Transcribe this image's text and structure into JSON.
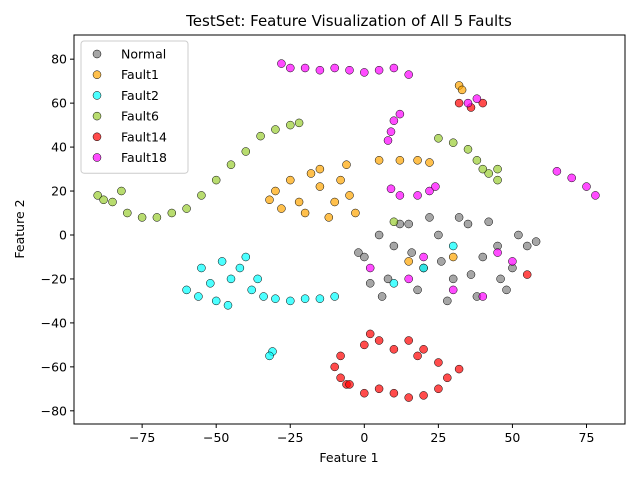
{
  "chart_data": {
    "type": "scatter",
    "title": "TestSet: Feature Visualization of All 5 Faults",
    "xlabel": "Feature 1",
    "ylabel": "Feature 2",
    "xlim": [
      -98,
      88
    ],
    "ylim": [
      -86,
      91
    ],
    "xticks": [
      -75,
      -50,
      -25,
      0,
      25,
      50,
      75
    ],
    "yticks": [
      -80,
      -60,
      -40,
      -20,
      0,
      20,
      40,
      60,
      80
    ],
    "grid": false,
    "legend_position": "top-left",
    "series": [
      {
        "name": "Normal",
        "color": "#808080",
        "points": [
          [
            0,
            -10
          ],
          [
            5,
            0
          ],
          [
            10,
            -5
          ],
          [
            15,
            5
          ],
          [
            20,
            -15
          ],
          [
            25,
            0
          ],
          [
            30,
            -20
          ],
          [
            35,
            5
          ],
          [
            40,
            -10
          ],
          [
            45,
            -5
          ],
          [
            50,
            -15
          ],
          [
            55,
            -5
          ],
          [
            8,
            -20
          ],
          [
            18,
            -25
          ],
          [
            28,
            -30
          ],
          [
            38,
            -28
          ],
          [
            48,
            -25
          ],
          [
            12,
            5
          ],
          [
            22,
            8
          ],
          [
            32,
            8
          ],
          [
            42,
            6
          ],
          [
            2,
            -22
          ],
          [
            52,
            0
          ],
          [
            58,
            -3
          ],
          [
            -2,
            -8
          ],
          [
            26,
            -12
          ],
          [
            36,
            -18
          ],
          [
            16,
            -8
          ],
          [
            46,
            -20
          ],
          [
            6,
            -28
          ]
        ]
      },
      {
        "name": "Fault1",
        "color": "#FFA500",
        "points": [
          [
            -30,
            20
          ],
          [
            -25,
            25
          ],
          [
            -20,
            10
          ],
          [
            -15,
            22
          ],
          [
            -10,
            15
          ],
          [
            -5,
            18
          ],
          [
            -28,
            12
          ],
          [
            -18,
            28
          ],
          [
            -8,
            25
          ],
          [
            -22,
            15
          ],
          [
            -12,
            8
          ],
          [
            -3,
            10
          ],
          [
            -32,
            16
          ],
          [
            -15,
            30
          ],
          [
            -6,
            32
          ],
          [
            5,
            34
          ],
          [
            12,
            34
          ],
          [
            18,
            34
          ],
          [
            22,
            33
          ],
          [
            32,
            68
          ],
          [
            33,
            66
          ],
          [
            30,
            -10
          ],
          [
            15,
            -12
          ]
        ]
      },
      {
        "name": "Fault2",
        "color": "#00FFFF",
        "points": [
          [
            -60,
            -25
          ],
          [
            -55,
            -15
          ],
          [
            -50,
            -30
          ],
          [
            -45,
            -20
          ],
          [
            -40,
            -10
          ],
          [
            -38,
            -25
          ],
          [
            -52,
            -22
          ],
          [
            -46,
            -32
          ],
          [
            -42,
            -15
          ],
          [
            -36,
            -20
          ],
          [
            -48,
            -12
          ],
          [
            -56,
            -28
          ],
          [
            -34,
            -28
          ],
          [
            -30,
            -29
          ],
          [
            -25,
            -30
          ],
          [
            -20,
            -29
          ],
          [
            -15,
            -29
          ],
          [
            -10,
            -28
          ],
          [
            -31,
            -53
          ],
          [
            -32,
            -55
          ],
          [
            20,
            -15
          ],
          [
            30,
            -5
          ],
          [
            10,
            -22
          ]
        ]
      },
      {
        "name": "Fault6",
        "color": "#9ACD32",
        "points": [
          [
            -90,
            18
          ],
          [
            -85,
            15
          ],
          [
            -80,
            10
          ],
          [
            -75,
            8
          ],
          [
            -70,
            8
          ],
          [
            -65,
            10
          ],
          [
            -60,
            12
          ],
          [
            -55,
            18
          ],
          [
            -50,
            25
          ],
          [
            -45,
            32
          ],
          [
            -40,
            38
          ],
          [
            -35,
            45
          ],
          [
            -30,
            48
          ],
          [
            -25,
            50
          ],
          [
            -22,
            51
          ],
          [
            -88,
            16
          ],
          [
            -82,
            20
          ],
          [
            25,
            44
          ],
          [
            30,
            42
          ],
          [
            35,
            39
          ],
          [
            38,
            34
          ],
          [
            40,
            30
          ],
          [
            42,
            28
          ],
          [
            45,
            25
          ],
          [
            45,
            30
          ],
          [
            10,
            6
          ]
        ]
      },
      {
        "name": "Fault14",
        "color": "#FF0000",
        "points": [
          [
            -10,
            -60
          ],
          [
            -8,
            -55
          ],
          [
            -6,
            -68
          ],
          [
            0,
            -50
          ],
          [
            5,
            -48
          ],
          [
            10,
            -52
          ],
          [
            15,
            -48
          ],
          [
            20,
            -52
          ],
          [
            25,
            -58
          ],
          [
            28,
            -65
          ],
          [
            25,
            -70
          ],
          [
            20,
            -73
          ],
          [
            15,
            -74
          ],
          [
            10,
            -72
          ],
          [
            5,
            -70
          ],
          [
            0,
            -72
          ],
          [
            -5,
            -68
          ],
          [
            -8,
            -65
          ],
          [
            2,
            -45
          ],
          [
            18,
            -55
          ],
          [
            32,
            60
          ],
          [
            36,
            58
          ],
          [
            40,
            60
          ],
          [
            32,
            -61
          ],
          [
            55,
            -18
          ]
        ]
      },
      {
        "name": "Fault18",
        "color": "#FF00FF",
        "points": [
          [
            -28,
            78
          ],
          [
            -25,
            76
          ],
          [
            -20,
            76
          ],
          [
            -15,
            75
          ],
          [
            -10,
            76
          ],
          [
            -5,
            75
          ],
          [
            0,
            74
          ],
          [
            5,
            75
          ],
          [
            10,
            76
          ],
          [
            15,
            73
          ],
          [
            8,
            43
          ],
          [
            9,
            47
          ],
          [
            10,
            52
          ],
          [
            12,
            55
          ],
          [
            9,
            21
          ],
          [
            12,
            18
          ],
          [
            18,
            18
          ],
          [
            22,
            20
          ],
          [
            24,
            22
          ],
          [
            35,
            60
          ],
          [
            38,
            62
          ],
          [
            65,
            29
          ],
          [
            70,
            26
          ],
          [
            75,
            22
          ],
          [
            78,
            18
          ],
          [
            2,
            -15
          ],
          [
            20,
            -10
          ],
          [
            30,
            -25
          ],
          [
            45,
            -8
          ],
          [
            15,
            -20
          ],
          [
            40,
            -28
          ],
          [
            50,
            -12
          ]
        ]
      }
    ]
  }
}
